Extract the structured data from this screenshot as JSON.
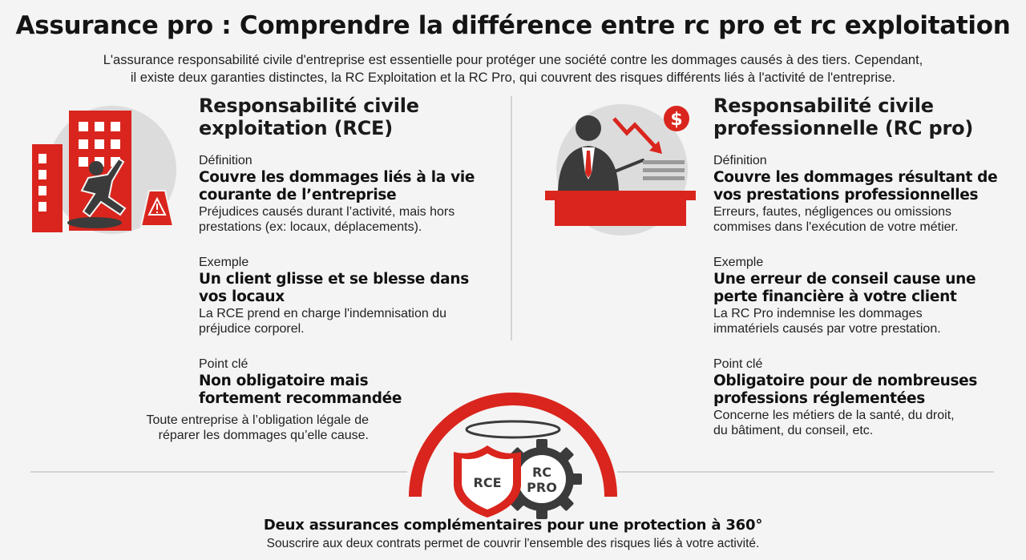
{
  "header": {
    "title": "Assurance pro : Comprendre la différence entre rc pro et rc exploitation",
    "intro_line1": "L'assurance responsabilité civile d'entreprise est essentielle pour protéger une société contre les dommages causés à des tiers. Cependant,",
    "intro_line2": "il existe deux garanties distinctes, la RC Exploitation et la RC Pro, qui couvrent des risques différents liés à l'activité de l'entreprise."
  },
  "left": {
    "title_line1": "Responsabilité civile",
    "title_line2": "exploitation (RCE)",
    "definition": {
      "label": "Définition",
      "head_line1": "Couvre les dommages liés à la vie",
      "head_line2": "courante de l’entreprise",
      "body_line1": "Préjudices causés durant l’activité, mais hors",
      "body_line2": "prestations (ex: locaux, déplacements)."
    },
    "example": {
      "label": "Exemple",
      "head_line1": "Un client glisse et se blesse dans",
      "head_line2": "vos locaux",
      "body_line1": "La RCE prend en charge l'indemnisation du",
      "body_line2": "préjudice corporel."
    },
    "key": {
      "label": "Point clé",
      "head_line1": "Non obligatoire mais",
      "head_line2": "fortement recommandée",
      "body_line1": "Toute entreprise à l’obligation légale de",
      "body_line2": "réparer les dommages qu’elle cause."
    }
  },
  "right": {
    "title_line1": "Responsabilité civile",
    "title_line2": "professionnelle (RC pro)",
    "definition": {
      "label": "Définition",
      "head_line1": "Couvre les dommages résultant de",
      "head_line2": "vos prestations professionnelles",
      "body_line1": "Erreurs, fautes, négligences ou omissions",
      "body_line2": "commises dans l'exécution de votre métier."
    },
    "example": {
      "label": "Exemple",
      "head_line1": "Une erreur de conseil cause une",
      "head_line2": "perte financière à votre client",
      "body_line1": "La RC Pro indemnise les dommages",
      "body_line2": "immatériels causés par votre prestation."
    },
    "key": {
      "label": "Point clé",
      "head_line1": "Obligatoire pour de nombreuses",
      "head_line2": "professions réglementées",
      "body_line1": "Concerne les métiers de la santé, du droit,",
      "body_line2": "du bâtiment, du conseil, etc."
    }
  },
  "badge": {
    "shield_text": "RCE",
    "gear_text_line1": "RC",
    "gear_text_line2": "PRO"
  },
  "footer": {
    "title": "Deux assurances complémentaires pour une protection à 360°",
    "subtitle": "Souscrire aux deux contrats permet de couvrir l'ensemble des risques liés à votre activité."
  },
  "colors": {
    "accent": "#d9251d",
    "dark": "#3b3b3b",
    "circle_bg": "#dcdcdc"
  },
  "icons": {
    "left_illustration": "building-slip-icon",
    "right_illustration": "presenter-loss-icon",
    "center": "shield-gear-icon"
  }
}
